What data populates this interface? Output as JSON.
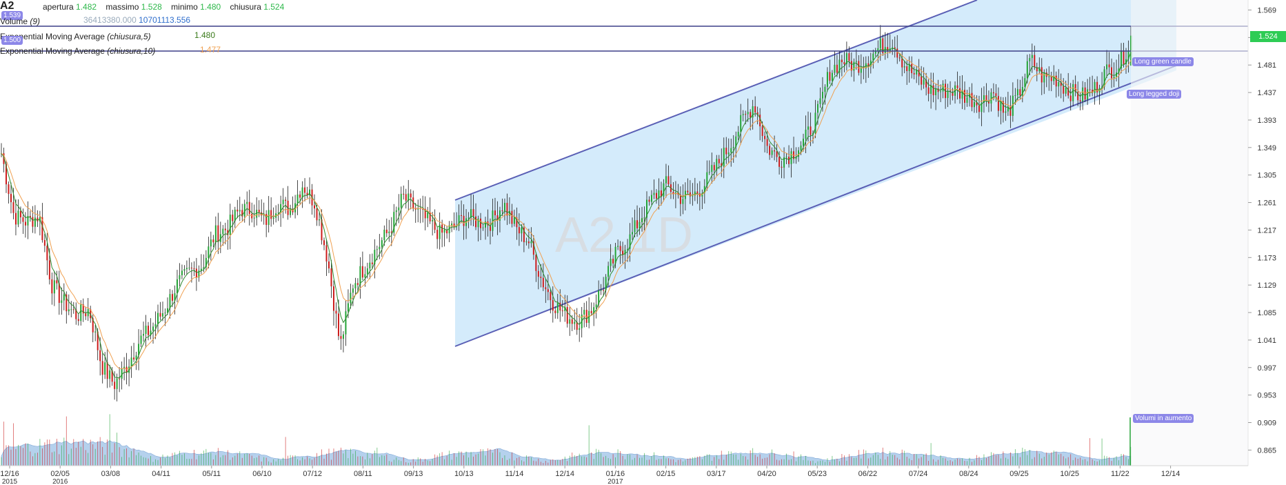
{
  "header": {
    "symbol": "A2",
    "open_label": "apertura",
    "open_value": "1.482",
    "high_label": "massimo",
    "high_value": "1.528",
    "low_label": "minimo",
    "low_value": "1.480",
    "close_label": "chiusura",
    "close_value": "1.524",
    "volume_label": "Volume",
    "volume_param": "(9)",
    "volume_value": "36413380.000",
    "volume_avg": "10701113.556",
    "ema5_label": "Exponential Moving Average",
    "ema5_param": "(chiusura,5)",
    "ema5_value": "1.480",
    "ema10_label": "Exponential Moving Average",
    "ema10_param": "(chiusura,10)",
    "ema10_value": "1.477",
    "line_tag_top": "1.539",
    "line_tag_bottom": "1.500"
  },
  "watermark": "A2,1D",
  "annotations": {
    "green_candle": "Long green candle",
    "doji": "Long legged doji",
    "volume": "Volumi in aumento"
  },
  "last_price": "1.524",
  "colors": {
    "up": "#23a336",
    "down": "#cc1b1b",
    "channel_fill": "#cfe9fb",
    "channel_line": "#5a5fb5",
    "volume_fill": "#a9c9ea",
    "ema5": "#2d8a2d",
    "ema10": "#f0a050"
  },
  "chart_data": {
    "type": "candlestick",
    "title": "A2,1D",
    "ylim": [
      0.84,
      1.585
    ],
    "y_ticks": [
      "1.569",
      "1.525",
      "1.481",
      "1.437",
      "1.393",
      "1.349",
      "1.305",
      "1.261",
      "1.217",
      "1.173",
      "1.129",
      "1.085",
      "1.041",
      "0.997",
      "0.953",
      "0.909",
      "0.865"
    ],
    "x_ticks": [
      {
        "label": "12/16",
        "sub": "2015"
      },
      {
        "label": "02/05",
        "sub": "2016"
      },
      {
        "label": "03/08",
        "sub": ""
      },
      {
        "label": "04/11",
        "sub": ""
      },
      {
        "label": "05/11",
        "sub": ""
      },
      {
        "label": "06/10",
        "sub": ""
      },
      {
        "label": "07/12",
        "sub": ""
      },
      {
        "label": "08/11",
        "sub": ""
      },
      {
        "label": "09/13",
        "sub": ""
      },
      {
        "label": "10/13",
        "sub": ""
      },
      {
        "label": "11/14",
        "sub": ""
      },
      {
        "label": "12/14",
        "sub": ""
      },
      {
        "label": "01/16",
        "sub": "2017"
      },
      {
        "label": "02/15",
        "sub": ""
      },
      {
        "label": "03/17",
        "sub": ""
      },
      {
        "label": "04/20",
        "sub": ""
      },
      {
        "label": "05/23",
        "sub": ""
      },
      {
        "label": "06/22",
        "sub": ""
      },
      {
        "label": "07/24",
        "sub": ""
      },
      {
        "label": "08/24",
        "sub": ""
      },
      {
        "label": "09/25",
        "sub": ""
      },
      {
        "label": "10/25",
        "sub": ""
      },
      {
        "label": "11/22",
        "sub": ""
      },
      {
        "label": "12/14",
        "sub": ""
      }
    ],
    "horizontal_lines": [
      1.539,
      1.5
    ],
    "channel": {
      "lower": [
        [
          1.02,
          1.47
        ]
      ],
      "upper": [
        [
          1.26,
          1.62
        ]
      ]
    },
    "close_path": [
      1.34,
      1.24,
      1.23,
      1.24,
      1.13,
      1.1,
      1.08,
      1.09,
      1.0,
      0.97,
      1.0,
      1.04,
      1.06,
      1.09,
      1.13,
      1.15,
      1.16,
      1.21,
      1.22,
      1.25,
      1.25,
      1.23,
      1.26,
      1.25,
      1.29,
      1.26,
      1.17,
      1.03,
      1.13,
      1.16,
      1.19,
      1.22,
      1.27,
      1.25,
      1.23,
      1.21,
      1.22,
      1.24,
      1.23,
      1.23,
      1.26,
      1.22,
      1.2,
      1.14,
      1.1,
      1.08,
      1.07,
      1.09,
      1.13,
      1.18,
      1.2,
      1.24,
      1.27,
      1.29,
      1.27,
      1.27,
      1.29,
      1.32,
      1.35,
      1.39,
      1.42,
      1.35,
      1.33,
      1.34,
      1.36,
      1.4,
      1.47,
      1.49,
      1.48,
      1.49,
      1.51,
      1.52,
      1.48,
      1.46,
      1.44,
      1.44,
      1.44,
      1.43,
      1.42,
      1.44,
      1.4,
      1.43,
      1.49,
      1.46,
      1.46,
      1.44,
      1.43,
      1.44,
      1.47,
      1.48,
      1.52
    ]
  }
}
